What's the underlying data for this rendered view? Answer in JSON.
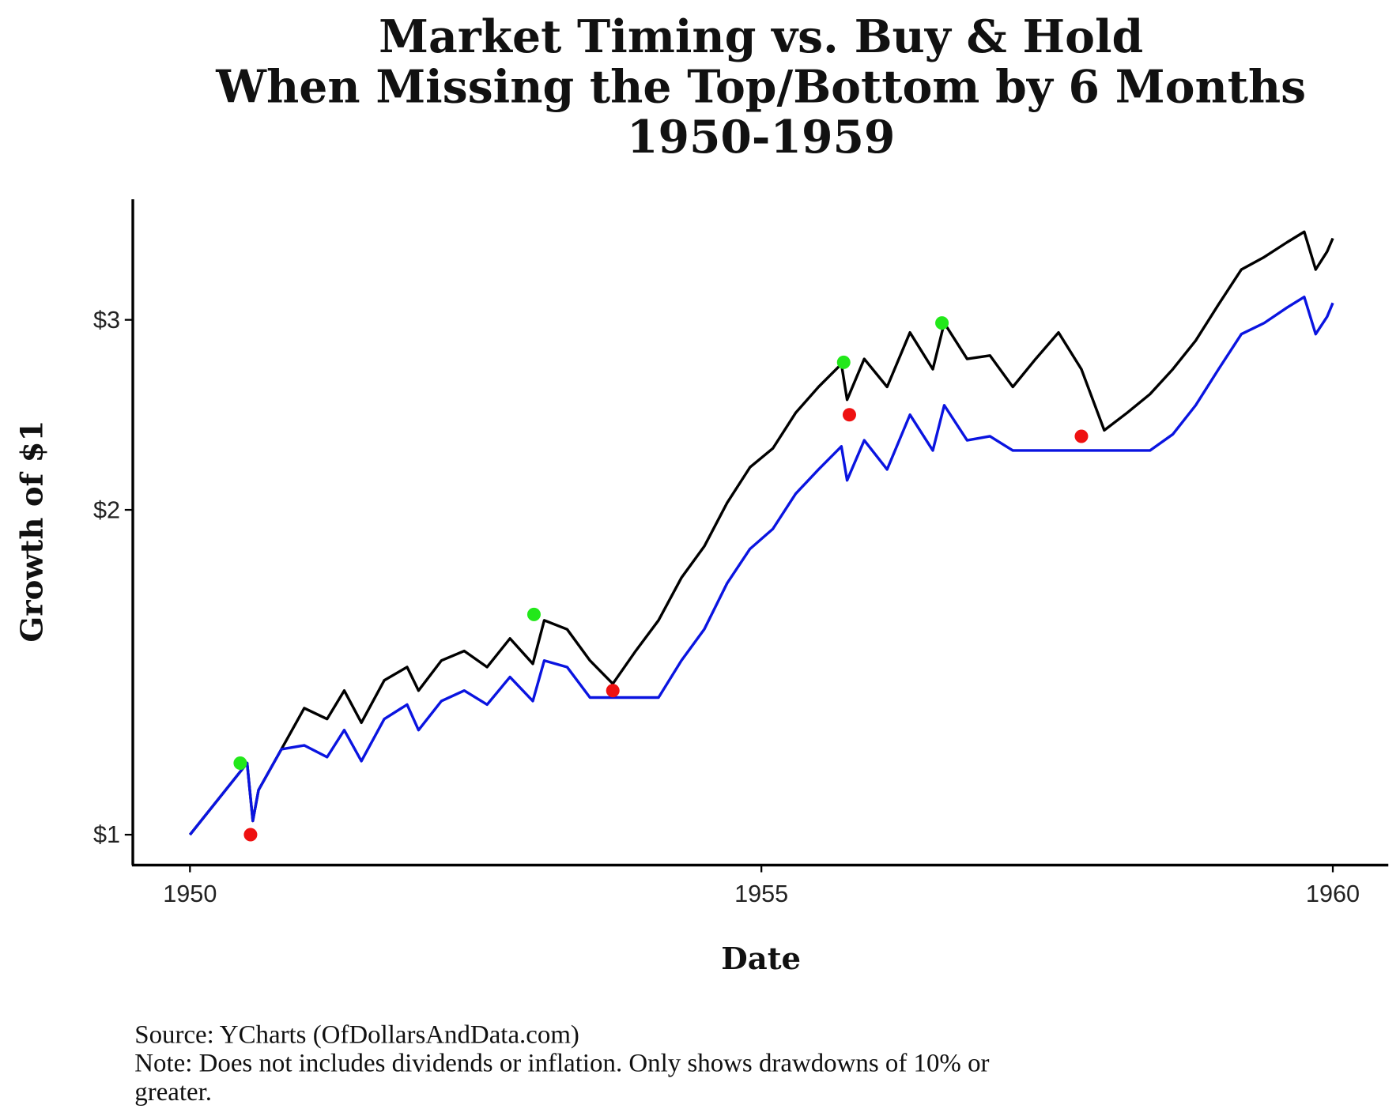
{
  "chart_data": {
    "type": "line",
    "title": [
      "Market Timing vs. Buy & Hold",
      "When Missing the Top/Bottom by 6 Months",
      "1950-1959"
    ],
    "x_label": "Date",
    "y_label": "Growth of $1",
    "captions": [
      "Source: YCharts (OfDollarsAndData.com)",
      "Note: Does not includes dividends or inflation. Only shows drawdowns of 10% or",
      "greater."
    ],
    "log_y": true,
    "xlim": [
      1949.5,
      1960.47
    ],
    "ylim": [
      0.939,
      3.88
    ],
    "xticks": [
      1950,
      1955,
      1960
    ],
    "yticks": [
      {
        "value": 1,
        "label": "$1"
      },
      {
        "value": 2,
        "label": "$2"
      },
      {
        "value": 3,
        "label": "$3"
      }
    ],
    "x": [
      1950.0,
      1950.5,
      1950.55,
      1950.6,
      1950.8,
      1951.0,
      1951.2,
      1951.35,
      1951.5,
      1951.7,
      1951.9,
      1952.0,
      1952.2,
      1952.4,
      1952.6,
      1952.8,
      1953.0,
      1953.1,
      1953.3,
      1953.5,
      1953.7,
      1953.9,
      1954.1,
      1954.3,
      1954.5,
      1954.7,
      1954.9,
      1955.1,
      1955.3,
      1955.5,
      1955.7,
      1955.75,
      1955.9,
      1956.1,
      1956.3,
      1956.5,
      1956.6,
      1956.8,
      1957.0,
      1957.2,
      1957.4,
      1957.6,
      1957.8,
      1958.0,
      1958.2,
      1958.4,
      1958.6,
      1958.8,
      1959.0,
      1959.2,
      1959.4,
      1959.6,
      1959.75,
      1959.85,
      1959.95,
      1960.0
    ],
    "series": [
      {
        "color": "#000000",
        "mode": "line",
        "values": [
          1.0,
          1.165,
          1.03,
          1.1,
          1.2,
          1.31,
          1.28,
          1.36,
          1.27,
          1.39,
          1.43,
          1.36,
          1.45,
          1.48,
          1.43,
          1.52,
          1.44,
          1.58,
          1.55,
          1.45,
          1.38,
          1.48,
          1.58,
          1.73,
          1.85,
          2.03,
          2.19,
          2.28,
          2.46,
          2.6,
          2.73,
          2.53,
          2.76,
          2.6,
          2.92,
          2.7,
          2.98,
          2.76,
          2.78,
          2.6,
          2.76,
          2.92,
          2.7,
          2.37,
          2.46,
          2.56,
          2.7,
          2.87,
          3.1,
          3.34,
          3.43,
          3.54,
          3.62,
          3.34,
          3.47,
          3.57
        ]
      },
      {
        "color": "#0a14e0",
        "mode": "line",
        "values": [
          1.0,
          1.165,
          1.03,
          1.1,
          1.2,
          1.21,
          1.18,
          1.25,
          1.17,
          1.28,
          1.32,
          1.25,
          1.33,
          1.36,
          1.32,
          1.4,
          1.33,
          1.45,
          1.43,
          1.34,
          1.34,
          1.34,
          1.34,
          1.45,
          1.55,
          1.71,
          1.84,
          1.92,
          2.07,
          2.18,
          2.29,
          2.13,
          2.32,
          2.18,
          2.45,
          2.27,
          2.5,
          2.32,
          2.34,
          2.27,
          2.27,
          2.27,
          2.27,
          2.27,
          2.27,
          2.27,
          2.35,
          2.5,
          2.7,
          2.91,
          2.98,
          3.08,
          3.15,
          2.91,
          3.02,
          3.11
        ]
      },
      {
        "color": "#22e81a",
        "mode": "markers",
        "x": [
          1950.44,
          1953.01,
          1955.72,
          1956.58
        ],
        "values": [
          1.165,
          1.6,
          2.74,
          2.98
        ]
      },
      {
        "color": "#ee1111",
        "mode": "markers",
        "x": [
          1950.53,
          1953.7,
          1955.77,
          1957.8
        ],
        "values": [
          1.0,
          1.36,
          2.45,
          2.34
        ]
      }
    ]
  }
}
